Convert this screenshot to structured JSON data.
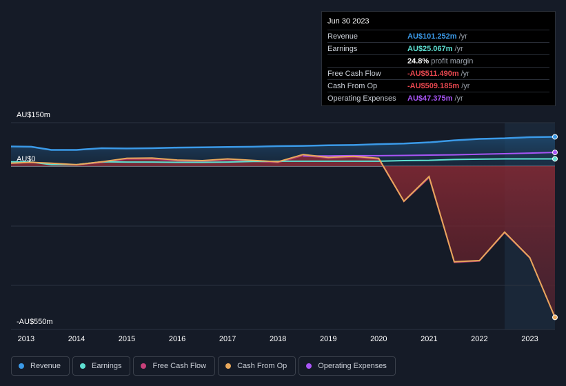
{
  "tooltip": {
    "date": "Jun 30 2023",
    "rows": [
      {
        "label": "Revenue",
        "value": "AU$101.252m",
        "unit": "/yr",
        "color": "#3b9ae8"
      },
      {
        "label": "Earnings",
        "value": "AU$25.067m",
        "unit": "/yr",
        "color": "#5ee0d2"
      },
      {
        "label": "",
        "value": "24.8%",
        "unit": "profit margin",
        "color": "#ffffff"
      },
      {
        "label": "Free Cash Flow",
        "value": "-AU$511.490m",
        "unit": "/yr",
        "color": "#e8474f"
      },
      {
        "label": "Cash From Op",
        "value": "-AU$509.185m",
        "unit": "/yr",
        "color": "#e8474f"
      },
      {
        "label": "Operating Expenses",
        "value": "AU$47.375m",
        "unit": "/yr",
        "color": "#a855f7"
      }
    ]
  },
  "legend": [
    {
      "label": "Revenue",
      "color": "#3b9ae8"
    },
    {
      "label": "Earnings",
      "color": "#5ee0d2"
    },
    {
      "label": "Free Cash Flow",
      "color": "#c8407a"
    },
    {
      "label": "Cash From Op",
      "color": "#e8a85c"
    },
    {
      "label": "Operating Expenses",
      "color": "#a855f7"
    }
  ],
  "chart_data": {
    "type": "area",
    "y_ticks": [
      {
        "value": 150,
        "label": "AU$150m"
      },
      {
        "value": 0,
        "label": "AU$0"
      },
      {
        "value": -550,
        "label": "-AU$550m"
      }
    ],
    "ylim": [
      -550,
      150
    ],
    "xlim": [
      2012.7,
      2023.5
    ],
    "x_ticks": [
      2013,
      2014,
      2015,
      2016,
      2017,
      2018,
      2019,
      2020,
      2021,
      2022,
      2023
    ],
    "x_tick_labels": [
      "2013",
      "2014",
      "2015",
      "2016",
      "2017",
      "2018",
      "2019",
      "2020",
      "2021",
      "2022",
      "2023"
    ],
    "forecast_start": 2022.5,
    "series": [
      {
        "name": "Revenue",
        "color": "#3b9ae8",
        "points": [
          [
            2012.7,
            68
          ],
          [
            2013.1,
            67
          ],
          [
            2013.5,
            56
          ],
          [
            2014.0,
            56
          ],
          [
            2014.5,
            62
          ],
          [
            2015.0,
            61
          ],
          [
            2015.5,
            62
          ],
          [
            2016.0,
            64
          ],
          [
            2016.5,
            65
          ],
          [
            2017.0,
            66
          ],
          [
            2017.5,
            67
          ],
          [
            2018.0,
            69
          ],
          [
            2018.5,
            70
          ],
          [
            2019.0,
            72
          ],
          [
            2019.5,
            73
          ],
          [
            2020.0,
            76
          ],
          [
            2020.5,
            78
          ],
          [
            2021.0,
            82
          ],
          [
            2021.5,
            89
          ],
          [
            2022.0,
            94
          ],
          [
            2022.5,
            96
          ],
          [
            2023.0,
            100
          ],
          [
            2023.5,
            101.3
          ]
        ]
      },
      {
        "name": "Earnings",
        "color": "#5ee0d2",
        "points": [
          [
            2012.7,
            15
          ],
          [
            2013.1,
            14
          ],
          [
            2013.5,
            5
          ],
          [
            2014.0,
            5
          ],
          [
            2014.5,
            15
          ],
          [
            2015.0,
            14
          ],
          [
            2015.5,
            14
          ],
          [
            2016.0,
            13
          ],
          [
            2016.5,
            13
          ],
          [
            2017.0,
            14
          ],
          [
            2017.5,
            16
          ],
          [
            2018.0,
            17
          ],
          [
            2018.5,
            17
          ],
          [
            2019.0,
            17
          ],
          [
            2019.5,
            17
          ],
          [
            2020.0,
            17
          ],
          [
            2020.5,
            19
          ],
          [
            2021.0,
            20
          ],
          [
            2021.5,
            23
          ],
          [
            2022.0,
            24
          ],
          [
            2022.5,
            25
          ],
          [
            2023.0,
            25
          ],
          [
            2023.5,
            25.1
          ]
        ]
      },
      {
        "name": "Free Cash Flow",
        "color": "#c8407a",
        "points": [
          [
            2012.7,
            10
          ],
          [
            2013.1,
            12
          ],
          [
            2013.5,
            8
          ],
          [
            2014.0,
            4
          ],
          [
            2014.5,
            12
          ],
          [
            2015.0,
            24
          ],
          [
            2015.5,
            24
          ],
          [
            2016.0,
            18
          ],
          [
            2016.5,
            16
          ],
          [
            2017.0,
            22
          ],
          [
            2017.5,
            16
          ],
          [
            2018.0,
            12
          ],
          [
            2018.5,
            36
          ],
          [
            2019.0,
            27
          ],
          [
            2019.5,
            31
          ],
          [
            2020.0,
            24
          ],
          [
            2020.5,
            -120
          ],
          [
            2021.0,
            -40
          ],
          [
            2021.5,
            -325
          ],
          [
            2022.0,
            -320
          ],
          [
            2022.5,
            -225
          ],
          [
            2023.0,
            -310
          ],
          [
            2023.5,
            -511.5
          ]
        ]
      },
      {
        "name": "Cash From Op",
        "color": "#e8a85c",
        "points": [
          [
            2012.7,
            10
          ],
          [
            2013.1,
            13
          ],
          [
            2013.5,
            10
          ],
          [
            2014.0,
            5
          ],
          [
            2014.5,
            15
          ],
          [
            2015.0,
            27
          ],
          [
            2015.5,
            28
          ],
          [
            2016.0,
            21
          ],
          [
            2016.5,
            19
          ],
          [
            2017.0,
            25
          ],
          [
            2017.5,
            20
          ],
          [
            2018.0,
            15
          ],
          [
            2018.5,
            40
          ],
          [
            2019.0,
            30
          ],
          [
            2019.5,
            34
          ],
          [
            2020.0,
            27
          ],
          [
            2020.5,
            -118
          ],
          [
            2021.0,
            -35
          ],
          [
            2021.5,
            -322
          ],
          [
            2022.0,
            -318
          ],
          [
            2022.5,
            -222
          ],
          [
            2023.0,
            -308
          ],
          [
            2023.5,
            -509.2
          ]
        ]
      },
      {
        "name": "Operating Expenses",
        "color": "#a855f7",
        "points": [
          [
            2018.5,
            35
          ],
          [
            2019.0,
            35
          ],
          [
            2019.5,
            36
          ],
          [
            2020.0,
            36
          ],
          [
            2020.5,
            37
          ],
          [
            2021.0,
            38
          ],
          [
            2021.5,
            39
          ],
          [
            2022.0,
            41
          ],
          [
            2022.5,
            43
          ],
          [
            2023.0,
            45
          ],
          [
            2023.5,
            47.4
          ]
        ]
      }
    ]
  }
}
